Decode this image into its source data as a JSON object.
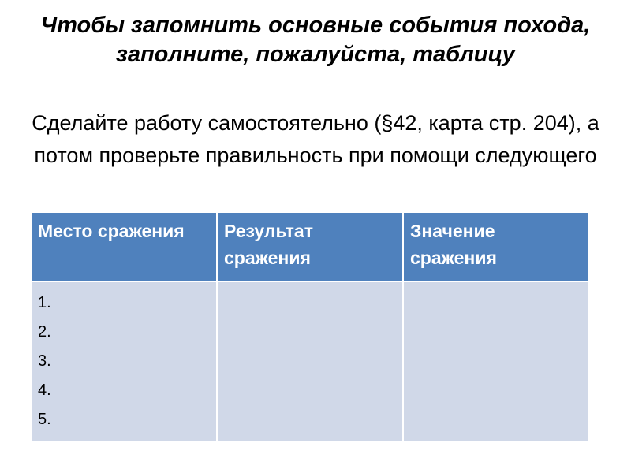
{
  "title": "Чтобы запомнить основные события похода, заполните, пожалуйста, таблицу",
  "subtitle": "Сделайте работу самостоятельно (§42, карта стр. 204), а потом проверьте правильность при помощи следующего",
  "table": {
    "headers": [
      "Место сражения",
      "Результат сражения",
      "Значение сражения"
    ],
    "rows": [
      [
        "1.",
        "2.",
        "3.",
        "4.",
        "5."
      ]
    ],
    "header_color": "#4f81bd",
    "body_color": "#d0d8e8"
  }
}
